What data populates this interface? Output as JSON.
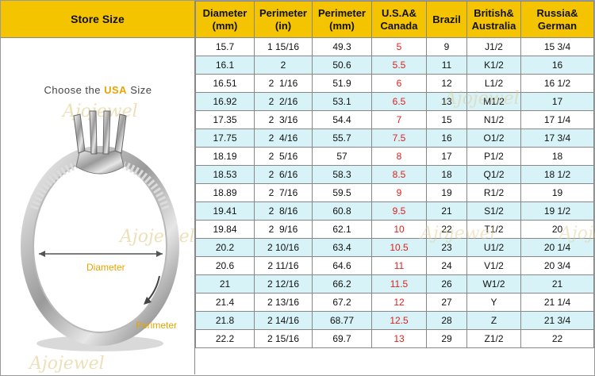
{
  "header": {
    "store_size_label": "Store Size"
  },
  "left_panel": {
    "choose_prefix": "Choose the",
    "choose_highlight": "USA",
    "choose_suffix": "Size",
    "watermark": "Ajojewel",
    "diameter_label": "Diameter",
    "perimeter_label": "Perimeter"
  },
  "columns": [
    {
      "line1": "Diameter",
      "line2": "(mm)"
    },
    {
      "line1": "Perimeter",
      "line2": "(in)"
    },
    {
      "line1": "Perimeter",
      "line2": "(mm)"
    },
    {
      "line1": "U.S.A&",
      "line2": "Canada"
    },
    {
      "line1": "Brazil",
      "line2": ""
    },
    {
      "line1": "British&",
      "line2": "Australia"
    },
    {
      "line1": "Russia&",
      "line2": "German"
    }
  ],
  "rows": [
    [
      "15.7",
      "1 15/16",
      "49.3",
      "5",
      "9",
      "J1/2",
      "15 3/4"
    ],
    [
      "16.1",
      "2",
      "50.6",
      "5.5",
      "11",
      "K1/2",
      "16"
    ],
    [
      "16.51",
      "2  1/16",
      "51.9",
      "6",
      "12",
      "L1/2",
      "16 1/2"
    ],
    [
      "16.92",
      "2  2/16",
      "53.1",
      "6.5",
      "13",
      "M1/2",
      "17"
    ],
    [
      "17.35",
      "2  3/16",
      "54.4",
      "7",
      "15",
      "N1/2",
      "17 1/4"
    ],
    [
      "17.75",
      "2  4/16",
      "55.7",
      "7.5",
      "16",
      "O1/2",
      "17 3/4"
    ],
    [
      "18.19",
      "2  5/16",
      "57",
      "8",
      "17",
      "P1/2",
      "18"
    ],
    [
      "18.53",
      "2  6/16",
      "58.3",
      "8.5",
      "18",
      "Q1/2",
      "18 1/2"
    ],
    [
      "18.89",
      "2  7/16",
      "59.5",
      "9",
      "19",
      "R1/2",
      "19"
    ],
    [
      "19.41",
      "2  8/16",
      "60.8",
      "9.5",
      "21",
      "S1/2",
      "19 1/2"
    ],
    [
      "19.84",
      "2  9/16",
      "62.1",
      "10",
      "22",
      "T1/2",
      "20"
    ],
    [
      "20.2",
      "2 10/16",
      "63.4",
      "10.5",
      "23",
      "U1/2",
      "20 1/4"
    ],
    [
      "20.6",
      "2 11/16",
      "64.6",
      "11",
      "24",
      "V1/2",
      "20 3/4"
    ],
    [
      "21",
      "2 12/16",
      "66.2",
      "11.5",
      "26",
      "W1/2",
      "21"
    ],
    [
      "21.4",
      "2 13/16",
      "67.2",
      "12",
      "27",
      "Y",
      "21 1/4"
    ],
    [
      "21.8",
      "2 14/16",
      "68.77",
      "12.5",
      "28",
      "Z",
      "21 3/4"
    ],
    [
      "22.2",
      "2 15/16",
      "69.7",
      "13",
      "29",
      "Z1/2",
      "22"
    ]
  ],
  "colors": {
    "header_bg": "#f5c400",
    "alt_row_bg": "#d7f3f8",
    "us_text": "#e0201c",
    "label_accent": "#e8a400"
  }
}
